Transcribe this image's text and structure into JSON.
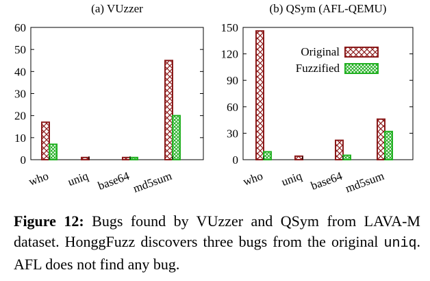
{
  "chart_data": [
    {
      "type": "bar",
      "title": "(a) VUzzer",
      "categories": [
        "who",
        "uniq",
        "base64",
        "md5sum"
      ],
      "series": [
        {
          "name": "Original",
          "values": [
            17,
            1,
            1,
            45
          ]
        },
        {
          "name": "Fuzzified",
          "values": [
            7,
            0,
            1,
            20
          ]
        }
      ],
      "ylim": [
        0,
        60
      ],
      "yticks": [
        0,
        10,
        20,
        30,
        40,
        50,
        60
      ],
      "legend": "none"
    },
    {
      "type": "bar",
      "title": "(b) QSym (AFL-QEMU)",
      "categories": [
        "who",
        "uniq",
        "base64",
        "md5sum"
      ],
      "series": [
        {
          "name": "Original",
          "values": [
            146,
            4,
            22,
            46
          ]
        },
        {
          "name": "Fuzzified",
          "values": [
            9,
            0,
            5,
            32
          ]
        }
      ],
      "ylim": [
        0,
        150
      ],
      "yticks": [
        0,
        30,
        60,
        90,
        120,
        150
      ],
      "legend": "top-right"
    }
  ],
  "colors": {
    "original": "#8b1a1a",
    "fuzzified": "#22b022"
  },
  "caption": {
    "label": "Figure 12:",
    "text_part1": " Bugs found by VUzzer and QSym from LAVA-M dataset. HonggFuzz discovers three bugs from the original ",
    "code": "uniq",
    "text_part2": ". AFL does not find any bug."
  }
}
